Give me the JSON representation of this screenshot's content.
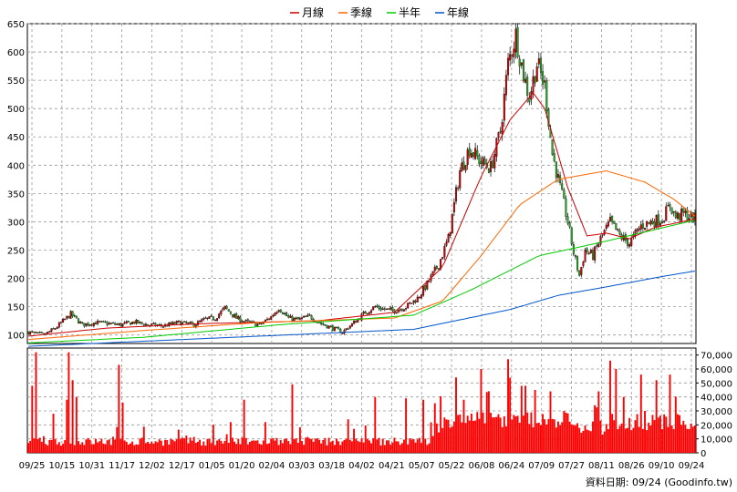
{
  "legend": [
    {
      "label": "月線",
      "color": "#cc0000"
    },
    {
      "label": "季線",
      "color": "#ff6600"
    },
    {
      "label": "半年",
      "color": "#00cc00"
    },
    {
      "label": "年線",
      "color": "#0055cc"
    }
  ],
  "source_text": "資料日期: 09/24  (Goodinfo.tw)",
  "colors": {
    "up": "#cc0000",
    "down": "#22aa22",
    "volume": "#ff0000",
    "grid": "#999999"
  },
  "chart_data": [
    {
      "type": "candlestick",
      "ylim": [
        85,
        650
      ],
      "yticks": [
        100,
        150,
        200,
        250,
        300,
        350,
        400,
        450,
        500,
        550,
        600,
        650
      ],
      "grid": true,
      "legend_position": "top-center",
      "close_anchors": [
        [
          0,
          105
        ],
        [
          8,
          100
        ],
        [
          14,
          112
        ],
        [
          22,
          137
        ],
        [
          28,
          118
        ],
        [
          35,
          122
        ],
        [
          42,
          120
        ],
        [
          48,
          118
        ],
        [
          55,
          123
        ],
        [
          62,
          118
        ],
        [
          70,
          116
        ],
        [
          78,
          122
        ],
        [
          86,
          118
        ],
        [
          92,
          128
        ],
        [
          97,
          130
        ],
        [
          102,
          148
        ],
        [
          108,
          130
        ],
        [
          114,
          122
        ],
        [
          120,
          118
        ],
        [
          126,
          132
        ],
        [
          130,
          148
        ],
        [
          135,
          130
        ],
        [
          140,
          127
        ],
        [
          146,
          133
        ],
        [
          152,
          120
        ],
        [
          158,
          112
        ],
        [
          163,
          105
        ],
        [
          169,
          122
        ],
        [
          175,
          140
        ],
        [
          180,
          150
        ],
        [
          185,
          145
        ],
        [
          190,
          143
        ],
        [
          196,
          150
        ],
        [
          202,
          165
        ],
        [
          207,
          190
        ],
        [
          213,
          225
        ],
        [
          218,
          270
        ],
        [
          224,
          390
        ],
        [
          229,
          430
        ],
        [
          235,
          405
        ],
        [
          240,
          395
        ],
        [
          245,
          460
        ],
        [
          249,
          580
        ],
        [
          253,
          630
        ],
        [
          257,
          560
        ],
        [
          260,
          520
        ],
        [
          264,
          580
        ],
        [
          268,
          540
        ],
        [
          272,
          420
        ],
        [
          276,
          360
        ],
        [
          280,
          300
        ],
        [
          283,
          245
        ],
        [
          286,
          205
        ],
        [
          289,
          250
        ],
        [
          293,
          240
        ],
        [
          297,
          270
        ],
        [
          302,
          300
        ],
        [
          307,
          275
        ],
        [
          312,
          262
        ],
        [
          318,
          293
        ],
        [
          323,
          300
        ],
        [
          329,
          305
        ],
        [
          333,
          330
        ],
        [
          336,
          308
        ],
        [
          340,
          314
        ],
        [
          343,
          310
        ],
        [
          346,
          305
        ]
      ],
      "ma_month": [
        [
          0,
          98
        ],
        [
          40,
          112
        ],
        [
          90,
          120
        ],
        [
          150,
          125
        ],
        [
          190,
          140
        ],
        [
          215,
          220
        ],
        [
          235,
          380
        ],
        [
          250,
          480
        ],
        [
          262,
          528
        ],
        [
          268,
          500
        ],
        [
          280,
          360
        ],
        [
          290,
          275
        ],
        [
          300,
          280
        ],
        [
          312,
          270
        ],
        [
          325,
          290
        ],
        [
          346,
          305
        ]
      ],
      "ma_quarter": [
        [
          0,
          92
        ],
        [
          60,
          108
        ],
        [
          120,
          122
        ],
        [
          190,
          130
        ],
        [
          215,
          160
        ],
        [
          235,
          240
        ],
        [
          255,
          330
        ],
        [
          275,
          375
        ],
        [
          300,
          390
        ],
        [
          320,
          370
        ],
        [
          335,
          340
        ],
        [
          346,
          310
        ]
      ],
      "ma_half": [
        [
          0,
          86
        ],
        [
          60,
          96
        ],
        [
          130,
          118
        ],
        [
          200,
          135
        ],
        [
          230,
          180
        ],
        [
          265,
          240
        ],
        [
          295,
          262
        ],
        [
          330,
          290
        ],
        [
          346,
          303
        ]
      ],
      "ma_year": [
        [
          0,
          80
        ],
        [
          100,
          95
        ],
        [
          200,
          110
        ],
        [
          250,
          145
        ],
        [
          275,
          170
        ],
        [
          300,
          185
        ],
        [
          330,
          204
        ],
        [
          346,
          213
        ]
      ],
      "xticks": [
        "09/25",
        "10/15",
        "10/31",
        "11/17",
        "12/02",
        "12/17",
        "01/05",
        "01/20",
        "02/04",
        "03/03",
        "03/18",
        "04/02",
        "04/21",
        "05/07",
        "05/22",
        "06/08",
        "06/24",
        "07/09",
        "07/27",
        "08/11",
        "08/26",
        "09/10",
        "09/24"
      ]
    },
    {
      "type": "bar",
      "ylim": [
        0,
        75000
      ],
      "yticks": [
        0,
        10000,
        20000,
        30000,
        40000,
        50000,
        60000,
        70000
      ],
      "ytick_labels": [
        "0",
        "10,000",
        "20,000",
        "30,000",
        "40,000",
        "50,000",
        "60,000",
        "70,000"
      ],
      "spikes": [
        [
          2,
          48000
        ],
        [
          4,
          72000
        ],
        [
          13,
          28000
        ],
        [
          20,
          38000
        ],
        [
          21,
          72000
        ],
        [
          23,
          52000
        ],
        [
          25,
          40000
        ],
        [
          47,
          63000
        ],
        [
          49,
          36000
        ],
        [
          96,
          20000
        ],
        [
          105,
          22000
        ],
        [
          112,
          38000
        ],
        [
          123,
          22000
        ],
        [
          137,
          49000
        ],
        [
          166,
          24000
        ],
        [
          180,
          40000
        ],
        [
          196,
          39000
        ],
        [
          205,
          38000
        ],
        [
          222,
          54000
        ],
        [
          226,
          38000
        ],
        [
          235,
          60000
        ],
        [
          249,
          67000
        ],
        [
          258,
          48000
        ],
        [
          263,
          45000
        ],
        [
          268,
          24000
        ],
        [
          271,
          44000
        ],
        [
          278,
          30000
        ],
        [
          283,
          20000
        ],
        [
          296,
          44000
        ],
        [
          302,
          66000
        ],
        [
          305,
          60000
        ],
        [
          309,
          40000
        ],
        [
          318,
          56000
        ],
        [
          320,
          30000
        ],
        [
          326,
          52000
        ],
        [
          333,
          56000
        ],
        [
          339,
          20000
        ]
      ]
    }
  ]
}
